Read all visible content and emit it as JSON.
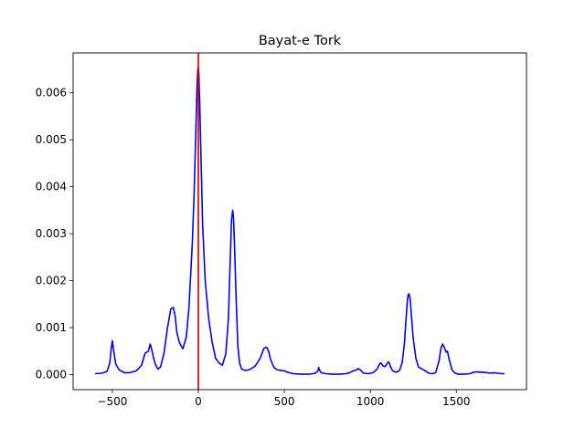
{
  "chart_data": {
    "type": "line",
    "title": "Bayat-e Tork",
    "xlabel": "",
    "ylabel": "",
    "xlim": [
      -728,
      1908
    ],
    "ylim": [
      -0.00032,
      0.00685
    ],
    "xticks": [
      -500,
      0,
      500,
      1000,
      1500
    ],
    "xtick_labels": [
      "−500",
      "0",
      "500",
      "1000",
      "1500"
    ],
    "yticks": [
      0.0,
      0.001,
      0.002,
      0.003,
      0.004,
      0.005,
      0.006
    ],
    "ytick_labels": [
      "0.000",
      "0.001",
      "0.002",
      "0.003",
      "0.004",
      "0.005",
      "0.006"
    ],
    "grid": false,
    "series": [
      {
        "color": "#0000ff",
        "x": [
          -600,
          -560,
          -530,
          -515,
          -505,
          -500,
          -492,
          -480,
          -460,
          -430,
          -400,
          -360,
          -330,
          -310,
          -300,
          -290,
          -280,
          -270,
          -260,
          -250,
          -235,
          -220,
          -200,
          -180,
          -160,
          -145,
          -135,
          -125,
          -110,
          -90,
          -70,
          -55,
          -45,
          -35,
          -25,
          -15,
          -8,
          -3,
          0,
          3,
          8,
          15,
          25,
          40,
          60,
          80,
          100,
          120,
          140,
          160,
          175,
          185,
          193,
          200,
          205,
          210,
          220,
          230,
          240,
          250,
          260,
          280,
          300,
          330,
          360,
          380,
          390,
          400,
          410,
          420,
          440,
          460,
          480,
          500,
          520,
          550,
          600,
          650,
          680,
          695,
          700,
          705,
          715,
          740,
          780,
          820,
          860,
          880,
          900,
          920,
          930,
          945,
          960,
          990,
          1020,
          1040,
          1050,
          1060,
          1068,
          1075,
          1085,
          1095,
          1105,
          1110,
          1118,
          1130,
          1150,
          1170,
          1185,
          1198,
          1208,
          1215,
          1220,
          1225,
          1232,
          1240,
          1250,
          1265,
          1280,
          1300,
          1320,
          1340,
          1360,
          1380,
          1400,
          1410,
          1420,
          1430,
          1440,
          1448,
          1460,
          1475,
          1490,
          1510,
          1540,
          1580,
          1600,
          1620,
          1640,
          1660,
          1680,
          1700,
          1720,
          1740,
          1760,
          1780
        ],
        "y": [
          2e-05,
          3e-05,
          7e-05,
          0.00025,
          0.0006,
          0.00072,
          0.0005,
          0.00022,
          0.0001,
          4e-05,
          4e-05,
          8e-05,
          0.0002,
          0.00045,
          0.00048,
          0.0005,
          0.00065,
          0.00052,
          0.00035,
          0.00022,
          0.00012,
          0.00016,
          0.00045,
          0.00098,
          0.0014,
          0.00143,
          0.00125,
          0.0009,
          0.00068,
          0.00055,
          0.0008,
          0.0014,
          0.0021,
          0.0028,
          0.0038,
          0.0051,
          0.0061,
          0.0065,
          0.00655,
          0.0064,
          0.0058,
          0.0047,
          0.0032,
          0.002,
          0.0012,
          0.0007,
          0.00035,
          0.00025,
          0.0002,
          0.00045,
          0.0012,
          0.0024,
          0.0033,
          0.0035,
          0.0033,
          0.0028,
          0.0016,
          0.0006,
          0.00025,
          0.00013,
          0.0001,
          9e-05,
          0.00011,
          0.00018,
          0.00035,
          0.00055,
          0.00058,
          0.00057,
          0.00048,
          0.00032,
          0.00015,
          0.0001,
          9e-05,
          8e-05,
          5e-05,
          2e-05,
          1e-05,
          1e-05,
          3e-05,
          8e-05,
          0.00015,
          9e-05,
          4e-05,
          2e-05,
          1e-05,
          1e-05,
          2e-05,
          4e-05,
          8e-05,
          0.0001,
          0.00013,
          9e-05,
          3e-05,
          2e-05,
          5e-05,
          0.00012,
          0.0002,
          0.00025,
          0.00022,
          0.00018,
          0.00017,
          0.00022,
          0.00027,
          0.00025,
          0.00016,
          8e-05,
          5e-05,
          9e-05,
          0.00025,
          0.00065,
          0.0012,
          0.00155,
          0.0017,
          0.00172,
          0.0016,
          0.0012,
          0.00075,
          0.00035,
          0.00016,
          0.00012,
          8e-05,
          3e-05,
          2e-05,
          4e-05,
          0.0003,
          0.00055,
          0.00065,
          0.00058,
          0.00048,
          0.0005,
          0.0003,
          0.0001,
          4e-05,
          1e-05,
          1e-05,
          2e-05,
          5e-05,
          6e-05,
          5e-05,
          5e-05,
          4e-05,
          3e-05,
          4e-05,
          3e-05,
          2e-05,
          2e-05
        ]
      }
    ],
    "reference_line": {
      "axis": "x",
      "value": 0,
      "color": "#e00000"
    }
  }
}
